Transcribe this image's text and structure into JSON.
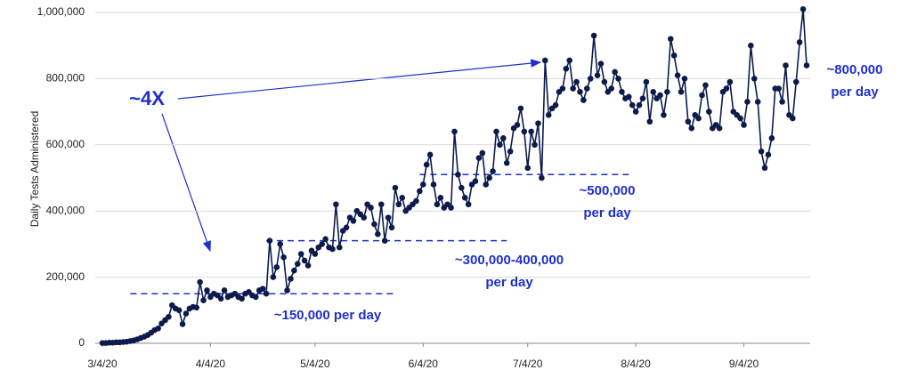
{
  "chart_data": {
    "type": "line",
    "y_label": "Daily Tests Administered",
    "x": [
      "3/4/20",
      "3/5/20",
      "3/6/20",
      "3/7/20",
      "3/8/20",
      "3/9/20",
      "3/10/20",
      "3/11/20",
      "3/12/20",
      "3/13/20",
      "3/14/20",
      "3/15/20",
      "3/16/20",
      "3/17/20",
      "3/18/20",
      "3/19/20",
      "3/20/20",
      "3/21/20",
      "3/22/20",
      "3/23/20",
      "3/24/20",
      "3/25/20",
      "3/26/20",
      "3/27/20",
      "3/28/20",
      "3/29/20",
      "3/30/20",
      "3/31/20",
      "4/1/20",
      "4/2/20",
      "4/3/20",
      "4/4/20",
      "4/5/20",
      "4/6/20",
      "4/7/20",
      "4/8/20",
      "4/9/20",
      "4/10/20",
      "4/11/20",
      "4/12/20",
      "4/13/20",
      "4/14/20",
      "4/15/20",
      "4/16/20",
      "4/17/20",
      "4/18/20",
      "4/19/20",
      "4/20/20",
      "4/21/20",
      "4/22/20",
      "4/23/20",
      "4/24/20",
      "4/25/20",
      "4/26/20",
      "4/27/20",
      "4/28/20",
      "4/29/20",
      "4/30/20",
      "5/1/20",
      "5/2/20",
      "5/3/20",
      "5/4/20",
      "5/5/20",
      "5/6/20",
      "5/7/20",
      "5/8/20",
      "5/9/20",
      "5/10/20",
      "5/11/20",
      "5/12/20",
      "5/13/20",
      "5/14/20",
      "5/15/20",
      "5/16/20",
      "5/17/20",
      "5/18/20",
      "5/19/20",
      "5/20/20",
      "5/21/20",
      "5/22/20",
      "5/23/20",
      "5/24/20",
      "5/25/20",
      "5/26/20",
      "5/27/20",
      "5/28/20",
      "5/29/20",
      "5/30/20",
      "5/31/20",
      "6/1/20",
      "6/2/20",
      "6/3/20",
      "6/4/20",
      "6/5/20",
      "6/6/20",
      "6/7/20",
      "6/8/20",
      "6/9/20",
      "6/10/20",
      "6/11/20",
      "6/12/20",
      "6/13/20",
      "6/14/20",
      "6/15/20",
      "6/16/20",
      "6/17/20",
      "6/18/20",
      "6/19/20",
      "6/20/20",
      "6/21/20",
      "6/22/20",
      "6/23/20",
      "6/24/20",
      "6/25/20",
      "6/26/20",
      "6/27/20",
      "6/28/20",
      "6/29/20",
      "6/30/20",
      "7/1/20",
      "7/2/20",
      "7/3/20",
      "7/4/20",
      "7/5/20",
      "7/6/20",
      "7/7/20",
      "7/8/20",
      "7/9/20",
      "7/10/20",
      "7/11/20",
      "7/12/20",
      "7/13/20",
      "7/14/20",
      "7/15/20",
      "7/16/20",
      "7/17/20",
      "7/18/20",
      "7/19/20",
      "7/20/20",
      "7/21/20",
      "7/22/20",
      "7/23/20",
      "7/24/20",
      "7/25/20",
      "7/26/20",
      "7/27/20",
      "7/28/20",
      "7/29/20",
      "7/30/20",
      "7/31/20",
      "8/1/20",
      "8/2/20",
      "8/3/20",
      "8/4/20",
      "8/5/20",
      "8/6/20",
      "8/7/20",
      "8/8/20",
      "8/9/20",
      "8/10/20",
      "8/11/20",
      "8/12/20",
      "8/13/20",
      "8/14/20",
      "8/15/20",
      "8/16/20",
      "8/17/20",
      "8/18/20",
      "8/19/20",
      "8/20/20",
      "8/21/20",
      "8/22/20",
      "8/23/20",
      "8/24/20",
      "8/25/20",
      "8/26/20",
      "8/27/20",
      "8/28/20",
      "8/29/20",
      "8/30/20",
      "8/31/20",
      "9/1/20",
      "9/2/20",
      "9/3/20",
      "9/4/20",
      "9/5/20",
      "9/6/20",
      "9/7/20",
      "9/8/20",
      "9/9/20",
      "9/10/20",
      "9/11/20",
      "9/12/20",
      "9/13/20",
      "9/14/20",
      "9/15/20",
      "9/16/20",
      "9/17/20",
      "9/18/20",
      "9/19/20",
      "9/20/20",
      "9/21/20",
      "9/22/20"
    ],
    "series": [
      {
        "color": "#0d1b4c",
        "values": [
          1000,
          1000,
          2000,
          2000,
          3000,
          3000,
          4000,
          5000,
          7000,
          9000,
          12000,
          16000,
          20000,
          25000,
          32000,
          40000,
          45000,
          60000,
          70000,
          80000,
          115000,
          105000,
          100000,
          58000,
          90000,
          105000,
          110000,
          108000,
          185000,
          130000,
          160000,
          140000,
          150000,
          145000,
          135000,
          160000,
          140000,
          145000,
          150000,
          140000,
          135000,
          150000,
          155000,
          145000,
          140000,
          160000,
          165000,
          150000,
          310000,
          200000,
          230000,
          300000,
          260000,
          160000,
          195000,
          220000,
          240000,
          270000,
          250000,
          235000,
          280000,
          270000,
          290000,
          300000,
          315000,
          290000,
          285000,
          420000,
          290000,
          340000,
          350000,
          380000,
          370000,
          400000,
          390000,
          380000,
          420000,
          410000,
          360000,
          330000,
          420000,
          310000,
          380000,
          350000,
          470000,
          420000,
          440000,
          400000,
          410000,
          420000,
          430000,
          460000,
          480000,
          540000,
          570000,
          480000,
          420000,
          440000,
          410000,
          420000,
          410000,
          640000,
          510000,
          470000,
          440000,
          420000,
          480000,
          490000,
          560000,
          575000,
          480000,
          500000,
          520000,
          640000,
          600000,
          620000,
          545000,
          580000,
          650000,
          660000,
          710000,
          640000,
          530000,
          640000,
          600000,
          665000,
          500000,
          855000,
          690000,
          710000,
          720000,
          760000,
          770000,
          830000,
          855000,
          770000,
          790000,
          760000,
          735000,
          770000,
          800000,
          930000,
          810000,
          845000,
          790000,
          760000,
          770000,
          820000,
          800000,
          760000,
          740000,
          745000,
          720000,
          700000,
          720000,
          740000,
          790000,
          670000,
          760000,
          740000,
          750000,
          690000,
          760000,
          920000,
          870000,
          810000,
          760000,
          800000,
          670000,
          650000,
          690000,
          680000,
          750000,
          780000,
          700000,
          650000,
          660000,
          650000,
          760000,
          770000,
          790000,
          700000,
          690000,
          680000,
          660000,
          730000,
          900000,
          800000,
          730000,
          580000,
          530000,
          570000,
          620000,
          770000,
          770000,
          730000,
          840000,
          690000,
          680000,
          790000,
          910000,
          1010000,
          840000
        ]
      }
    ],
    "xlim": [
      "3/4/20",
      "9/22/20"
    ],
    "xticks": [
      "3/4/20",
      "4/4/20",
      "5/4/20",
      "6/4/20",
      "7/4/20",
      "8/4/20",
      "9/4/20"
    ],
    "ylim": [
      0,
      1000000
    ],
    "yticks": [
      0,
      {
        "value": 200000,
        "label": "200,000"
      },
      {
        "value": 400000,
        "label": "400,000"
      },
      {
        "value": 600000,
        "label": "600,000"
      },
      {
        "value": 800000,
        "label": "800,000"
      },
      {
        "value": 1000000,
        "label": "1,000,000"
      }
    ],
    "grid": true,
    "reference_lines": [
      {
        "value": 150000,
        "start": "3/12/20",
        "end": "5/27/20",
        "color": "#1f2fcf"
      },
      {
        "value": 310000,
        "start": "4/20/20",
        "end": "6/28/20",
        "color": "#1f2fcf"
      },
      {
        "value": 510000,
        "start": "6/3/20",
        "end": "8/3/20",
        "color": "#1f2fcf"
      }
    ],
    "annotations": [
      {
        "text": [
          "~4X"
        ]
      },
      {
        "text": [
          "~150,000  per day"
        ]
      },
      {
        "text": [
          "~300,000-400,000",
          "per day"
        ]
      },
      {
        "text": [
          "~500,000",
          "per day"
        ]
      },
      {
        "text": [
          "~800,000",
          "per day"
        ]
      }
    ]
  }
}
